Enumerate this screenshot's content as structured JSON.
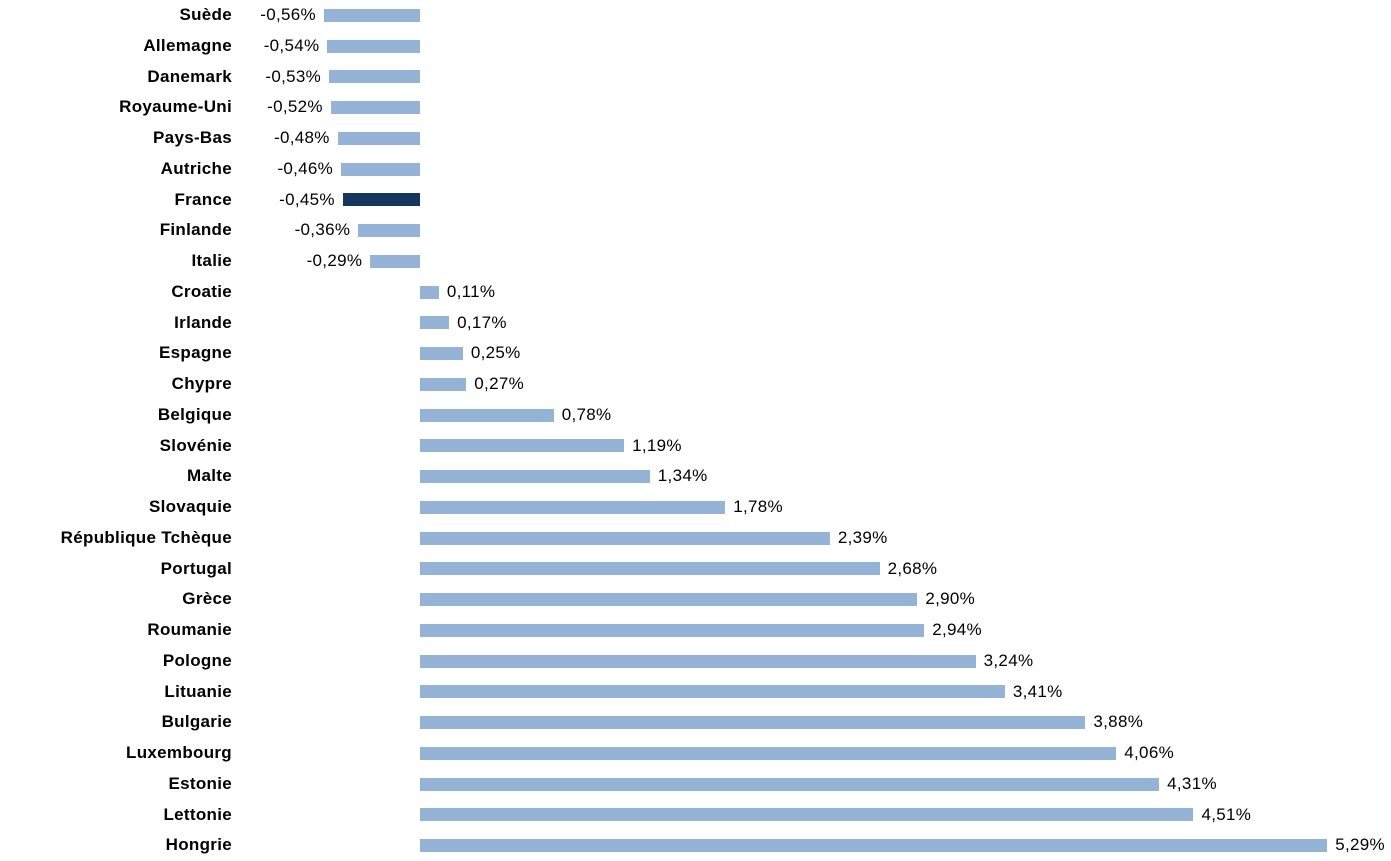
{
  "chart_data": {
    "type": "bar",
    "orientation": "horizontal",
    "title": "",
    "xlabel": "",
    "ylabel": "",
    "unit": "%",
    "decimal_separator": ",",
    "grid": false,
    "legend": "none",
    "xlim": [
      -0.7,
      5.6
    ],
    "bar_color": "#95B3D7",
    "highlight_color": "#17365D",
    "highlight_category": "France",
    "categories": [
      "Suède",
      "Allemagne",
      "Danemark",
      "Royaume-Uni",
      "Pays-Bas",
      "Autriche",
      "France",
      "Finlande",
      "Italie",
      "Croatie",
      "Irlande",
      "Espagne",
      "Chypre",
      "Belgique",
      "Slovénie",
      "Malte",
      "Slovaquie",
      "République Tchèque",
      "Portugal",
      "Grèce",
      "Roumanie",
      "Pologne",
      "Lituanie",
      "Bulgarie",
      "Luxembourg",
      "Estonie",
      "Lettonie",
      "Hongrie"
    ],
    "values": [
      -0.56,
      -0.54,
      -0.53,
      -0.52,
      -0.48,
      -0.46,
      -0.45,
      -0.36,
      -0.29,
      0.11,
      0.17,
      0.25,
      0.27,
      0.78,
      1.19,
      1.34,
      1.78,
      2.39,
      2.68,
      2.9,
      2.94,
      3.24,
      3.41,
      3.88,
      4.06,
      4.31,
      4.51,
      5.29
    ],
    "value_labels": [
      "-0,56%",
      "-0,54%",
      "-0,53%",
      "-0,52%",
      "-0,48%",
      "-0,46%",
      "-0,45%",
      "-0,36%",
      "-0,29%",
      "0,11%",
      "0,17%",
      "0,25%",
      "0,27%",
      "0,78%",
      "1,19%",
      "1,34%",
      "1,78%",
      "2,39%",
      "2,68%",
      "2,90%",
      "2,94%",
      "3,24%",
      "3,41%",
      "3,88%",
      "4,06%",
      "4,31%",
      "4,51%",
      "5,29%"
    ]
  }
}
